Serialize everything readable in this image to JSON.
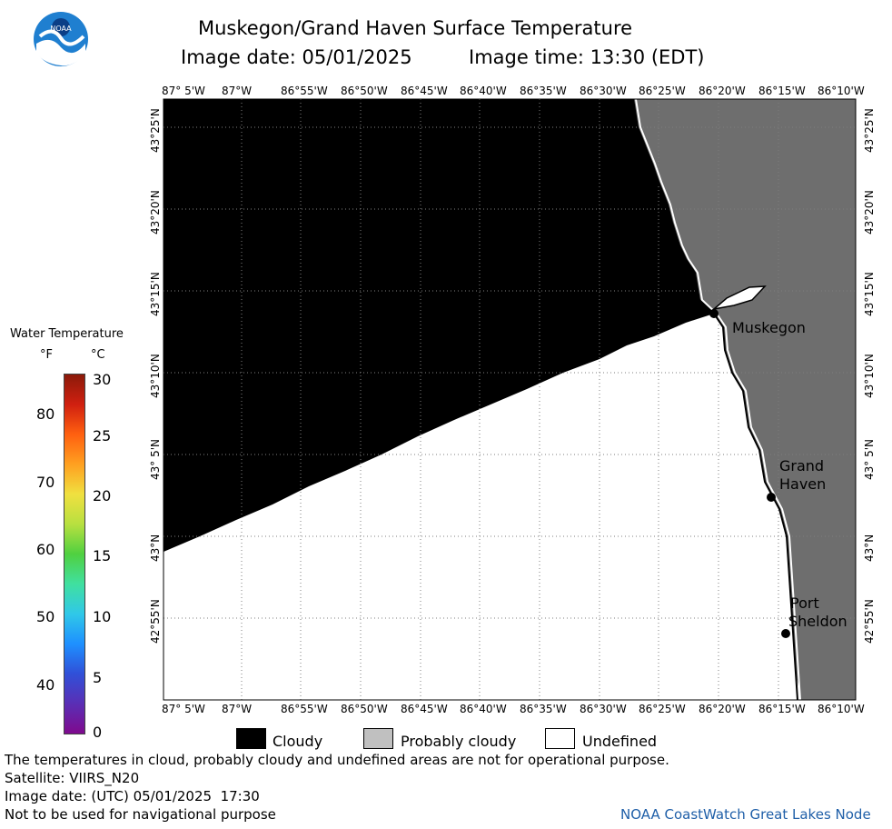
{
  "title": "Muskegon/Grand Haven Surface Temperature",
  "image_date_line": "Image date: 05/01/2025",
  "image_time_line": "Image time: 13:30 (EDT)",
  "x_ticks": [
    "87° 5'W",
    "87°W",
    "86°55'W",
    "86°50'W",
    "86°45'W",
    "86°40'W",
    "86°35'W",
    "86°30'W",
    "86°25'W",
    "86°20'W",
    "86°15'W",
    "86°10'W"
  ],
  "y_ticks": [
    "43°25'N",
    "43°20'N",
    "43°15'N",
    "43°10'N",
    "43° 5'N",
    "43°N",
    "42°55'N"
  ],
  "cities": [
    {
      "name_lines": [
        "Muskegon"
      ]
    },
    {
      "name_lines": [
        "Grand",
        "Haven"
      ]
    },
    {
      "name_lines": [
        "Port",
        "Sheldon"
      ]
    }
  ],
  "colorbar": {
    "title": "Water Temperature",
    "unit_f": "°F",
    "unit_c": "°C",
    "f_ticks": [
      "80",
      "70",
      "60",
      "50",
      "40"
    ],
    "c_ticks": [
      "30",
      "25",
      "20",
      "15",
      "10",
      "5",
      "0"
    ],
    "colors": [
      "#7f0a8e",
      "#5a2fb5",
      "#3050d8",
      "#1e90ff",
      "#30c8e8",
      "#40e0a0",
      "#50d040",
      "#b8e040",
      "#f0e040",
      "#ffa020",
      "#ff6010",
      "#d02010",
      "#8b1a0a"
    ]
  },
  "legend": {
    "items": [
      {
        "label": "Cloudy",
        "color": "#000000"
      },
      {
        "label": "Probably cloudy",
        "color": "#c0c0c0"
      },
      {
        "label": "Undefined",
        "color": "#ffffff"
      }
    ]
  },
  "colors": {
    "land": "#6e6e6e",
    "cloud": "#000000",
    "grid": "#7f7f7f"
  },
  "footer": {
    "disclaimer": "The temperatures in cloud, probably cloudy and undefined areas are not for operational purpose.",
    "satellite": "Satellite: VIIRS_N20",
    "utc_date": "Image date: (UTC) 05/01/2025  17:30",
    "nav_warning": "Not to be used for navigational purpose",
    "credit": "NOAA CoastWatch Great Lakes Node"
  },
  "logo": {
    "text": "NOAA"
  }
}
